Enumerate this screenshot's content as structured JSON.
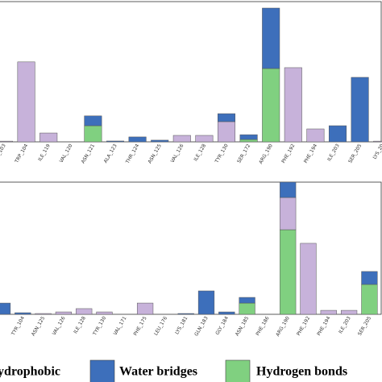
{
  "chart_data": [
    {
      "type": "stacked-bar",
      "categories": [
        "_103",
        "TRP_104",
        "ILE_119",
        "VAL_120",
        "ASN_121",
        "ALA_123",
        "THR_124",
        "ASN_125",
        "VAL_126",
        "ILE_128",
        "TYR_130",
        "SER_172",
        "ARG_190",
        "PHE_192",
        "PHE_194",
        "ILE_203",
        "SER_205",
        "LYS_20"
      ],
      "ylim": [
        0,
        1
      ],
      "series": [
        {
          "name": "Hydrogen bonds",
          "color": "#80d080",
          "values": [
            0,
            0,
            0,
            0,
            0.115,
            0,
            0,
            0,
            0,
            0,
            0,
            0.017,
            0.523,
            0,
            0,
            0,
            0,
            0
          ]
        },
        {
          "name": "Hydrophobic",
          "color": "#c7b2da",
          "values": [
            0.005,
            0.57,
            0.063,
            0,
            0,
            0,
            0,
            0,
            0.046,
            0.046,
            0.144,
            0,
            0,
            0.529,
            0.092,
            0,
            0,
            0.005
          ]
        },
        {
          "name": "Water bridges",
          "color": "#3d6fbb",
          "values": [
            0,
            0,
            0,
            0,
            0.07,
            0.006,
            0.035,
            0.012,
            0,
            0,
            0.057,
            0.034,
            0.431,
            0,
            0,
            0.115,
            0.46,
            0
          ]
        }
      ]
    },
    {
      "type": "stacked-bar",
      "categories": [
        null,
        "TYR_104",
        "ASN_125",
        "VAL_126",
        "ILE_128",
        "TYR_130",
        "VAL_171",
        "PHE_175",
        "LEU_176",
        "LYS_181",
        "GLN_183",
        "GLY_184",
        "ASN_185",
        "PHE_186",
        "ARG_190",
        "PHE_192",
        "PHE_194",
        "ILE_203",
        "SER_205"
      ],
      "ylim": [
        0,
        1
      ],
      "series": [
        {
          "color": "#80d080",
          "values": [
            0,
            0,
            0,
            0,
            0,
            0,
            0,
            0,
            0,
            0,
            0,
            0,
            0.085,
            0,
            0.64,
            0,
            0,
            0,
            0.226
          ]
        },
        {
          "color": "#c7b2da",
          "values": [
            0,
            0,
            0.006,
            0.018,
            0.043,
            0.018,
            0,
            0.085,
            0,
            0,
            0,
            0,
            0,
            0,
            0.244,
            0.537,
            0.03,
            0.03,
            0
          ]
        },
        {
          "color": "#3d6fbb",
          "values": [
            0.085,
            0.012,
            0,
            0,
            0,
            0,
            0,
            0,
            0,
            0.006,
            0.177,
            0.018,
            0.043,
            0,
            0.116,
            0,
            0,
            0,
            0.098
          ]
        }
      ]
    }
  ]
}
